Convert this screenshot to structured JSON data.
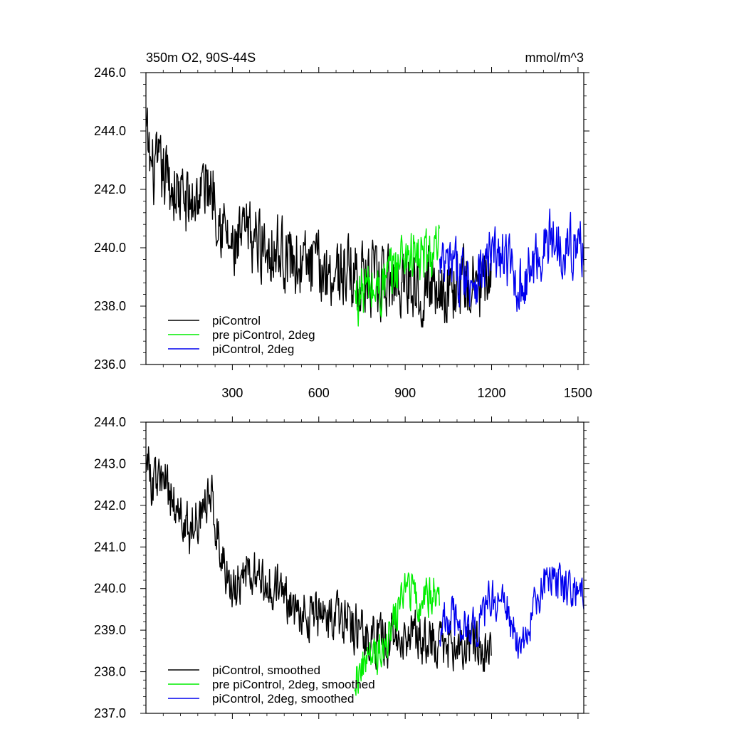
{
  "chart_data": [
    {
      "type": "line",
      "title": "350m O2, 90S-44S",
      "units": "mmol/m^3",
      "xlim": [
        0,
        1520
      ],
      "ylim": [
        236,
        246
      ],
      "xticks": [
        300,
        600,
        900,
        1200,
        1500
      ],
      "xtick_labels": [
        "300",
        "600",
        "900",
        "1200",
        "1500"
      ],
      "yticks": [
        236,
        238,
        240,
        242,
        244,
        246
      ],
      "ytick_labels": [
        "236.0",
        "238.0",
        "240.0",
        "242.0",
        "244.0",
        "246.0"
      ],
      "legend_position": "bottom-left",
      "series": [
        {
          "name": "piControl",
          "color": "#000000",
          "x_start": 1,
          "x_end": 1200,
          "noise_amp": 1.1,
          "x": [
            1,
            20,
            60,
            100,
            150,
            200,
            230,
            260,
            300,
            350,
            400,
            450,
            500,
            550,
            600,
            650,
            700,
            750,
            800,
            850,
            900,
            950,
            1000,
            1050,
            1100,
            1150,
            1200
          ],
          "y": [
            243.8,
            242.6,
            242.5,
            242.0,
            241.4,
            242.1,
            242.2,
            241.0,
            239.8,
            240.4,
            240.2,
            240.0,
            239.7,
            239.4,
            239.3,
            239.2,
            239.2,
            239.0,
            238.7,
            238.8,
            239.0,
            238.8,
            238.8,
            238.6,
            238.7,
            238.7,
            238.7
          ]
        },
        {
          "name": "pre piControl, 2deg",
          "color": "#00ee00",
          "x_start": 725,
          "x_end": 1020,
          "noise_amp": 0.9,
          "x": [
            725,
            760,
            800,
            850,
            900,
            950,
            1000,
            1020
          ],
          "y": [
            238.2,
            238.6,
            238.5,
            239.0,
            239.9,
            239.6,
            239.8,
            239.7
          ]
        },
        {
          "name": "piControl, 2deg",
          "color": "#0000ee",
          "x_start": 1020,
          "x_end": 1520,
          "noise_amp": 0.9,
          "x": [
            1020,
            1060,
            1100,
            1150,
            1200,
            1250,
            1300,
            1350,
            1400,
            1450,
            1500,
            1520
          ],
          "y": [
            239.2,
            239.3,
            239.1,
            239.0,
            239.7,
            239.6,
            238.6,
            239.5,
            240.3,
            240.1,
            240.0,
            240.1
          ]
        }
      ]
    },
    {
      "type": "line",
      "ylim": [
        237,
        244
      ],
      "xlim": [
        0,
        1520
      ],
      "yticks": [
        237,
        238,
        239,
        240,
        241,
        242,
        243,
        244
      ],
      "ytick_labels": [
        "237.0",
        "238.0",
        "239.0",
        "240.0",
        "241.0",
        "242.0",
        "243.0",
        "244.0"
      ],
      "legend_position": "bottom-left",
      "series": [
        {
          "name": "piControl, smoothed",
          "color": "#000000",
          "x_start": 1,
          "x_end": 1200,
          "noise_amp": 0.55,
          "x": [
            1,
            20,
            60,
            100,
            150,
            200,
            230,
            260,
            300,
            350,
            400,
            450,
            500,
            550,
            600,
            650,
            700,
            750,
            800,
            850,
            900,
            950,
            1000,
            1050,
            1100,
            1150,
            1200
          ],
          "y": [
            243.3,
            242.5,
            242.6,
            242.0,
            241.4,
            242.0,
            242.1,
            241.0,
            239.8,
            240.4,
            240.2,
            240.0,
            239.7,
            239.4,
            239.3,
            239.2,
            239.2,
            239.0,
            238.7,
            238.8,
            239.0,
            238.8,
            238.8,
            238.6,
            238.7,
            238.7,
            238.4
          ]
        },
        {
          "name": "pre piControl, 2deg, smoothed",
          "color": "#00ee00",
          "x_start": 725,
          "x_end": 1020,
          "noise_amp": 0.45,
          "x": [
            725,
            760,
            800,
            850,
            900,
            950,
            1000,
            1020
          ],
          "y": [
            237.9,
            238.2,
            238.4,
            239.0,
            240.0,
            239.7,
            239.9,
            239.7
          ]
        },
        {
          "name": "piControl, 2deg, smoothed",
          "color": "#0000ee",
          "x_start": 1020,
          "x_end": 1520,
          "noise_amp": 0.45,
          "x": [
            1020,
            1060,
            1100,
            1150,
            1200,
            1250,
            1300,
            1350,
            1400,
            1450,
            1500,
            1520
          ],
          "y": [
            239.1,
            239.3,
            239.1,
            239.0,
            239.8,
            239.6,
            238.4,
            239.5,
            240.4,
            240.1,
            240.1,
            239.8
          ]
        }
      ]
    }
  ]
}
